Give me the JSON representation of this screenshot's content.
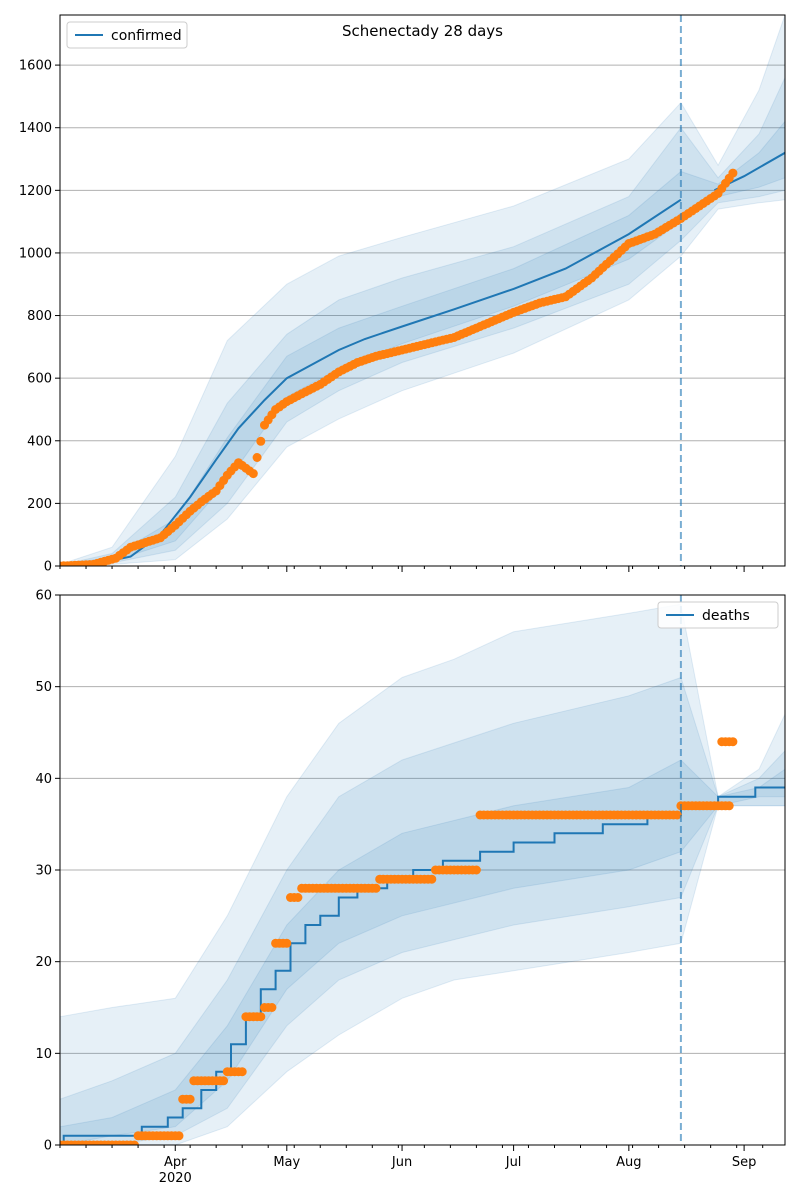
{
  "colors": {
    "line": "#1f77b4",
    "points": "#ff7f0e",
    "band": "#1f77b4",
    "grid": "#b0b0b0"
  },
  "chart_data": [
    {
      "type": "line",
      "title": "Schenectady 28 days",
      "xlabel": "",
      "ylabel": "",
      "xlim": [
        "2020-03-01",
        "2020-09-12"
      ],
      "ylim": [
        0,
        1760
      ],
      "yticks": [
        0,
        200,
        400,
        600,
        800,
        1000,
        1200,
        1400,
        1600
      ],
      "grid": "y",
      "legend": {
        "position": "top-left",
        "entries": [
          "confirmed"
        ]
      },
      "forecast_start": "2020-08-15",
      "series": [
        {
          "name": "confirmed",
          "kind": "model-median",
          "x": [
            "2020-03-01",
            "2020-03-10",
            "2020-03-20",
            "2020-03-28",
            "2020-04-05",
            "2020-04-12",
            "2020-04-18",
            "2020-04-25",
            "2020-05-01",
            "2020-05-08",
            "2020-05-15",
            "2020-05-22",
            "2020-06-01",
            "2020-06-15",
            "2020-07-01",
            "2020-07-15",
            "2020-08-01",
            "2020-08-15",
            "2020-08-24",
            "2020-09-01",
            "2020-09-12"
          ],
          "values": [
            0,
            5,
            30,
            100,
            220,
            340,
            440,
            530,
            600,
            645,
            690,
            725,
            765,
            820,
            885,
            950,
            1060,
            1170,
            1200,
            1245,
            1320
          ]
        },
        {
          "name": "observed",
          "kind": "points",
          "x": [
            "2020-03-01",
            "2020-03-10",
            "2020-03-16",
            "2020-03-20",
            "2020-03-24",
            "2020-03-28",
            "2020-04-01",
            "2020-04-05",
            "2020-04-08",
            "2020-04-12",
            "2020-04-15",
            "2020-04-18",
            "2020-04-22",
            "2020-04-25",
            "2020-04-28",
            "2020-05-01",
            "2020-05-05",
            "2020-05-10",
            "2020-05-15",
            "2020-05-20",
            "2020-05-25",
            "2020-06-01",
            "2020-06-08",
            "2020-06-15",
            "2020-06-22",
            "2020-07-01",
            "2020-07-08",
            "2020-07-15",
            "2020-07-22",
            "2020-08-01",
            "2020-08-08",
            "2020-08-15",
            "2020-08-20",
            "2020-08-25",
            "2020-08-29"
          ],
          "values": [
            0,
            5,
            25,
            60,
            75,
            90,
            130,
            175,
            205,
            240,
            290,
            330,
            295,
            450,
            500,
            525,
            550,
            580,
            620,
            650,
            670,
            690,
            710,
            730,
            765,
            810,
            840,
            860,
            920,
            1030,
            1060,
            1110,
            1150,
            1190,
            1255
          ]
        }
      ],
      "bands": [
        {
          "level": "outer",
          "x": [
            "2020-03-01",
            "2020-03-15",
            "2020-04-01",
            "2020-04-15",
            "2020-05-01",
            "2020-05-15",
            "2020-06-01",
            "2020-07-01",
            "2020-08-01",
            "2020-08-15",
            "2020-08-25",
            "2020-09-05",
            "2020-09-12"
          ],
          "lower": [
            0,
            5,
            20,
            150,
            380,
            470,
            560,
            680,
            850,
            990,
            1140,
            1160,
            1170
          ],
          "upper": [
            5,
            60,
            350,
            720,
            900,
            990,
            1050,
            1150,
            1300,
            1480,
            1280,
            1520,
            1760
          ]
        },
        {
          "level": "middle",
          "x": [
            "2020-03-01",
            "2020-03-15",
            "2020-04-01",
            "2020-04-15",
            "2020-05-01",
            "2020-05-15",
            "2020-06-01",
            "2020-07-01",
            "2020-08-01",
            "2020-08-15",
            "2020-08-25",
            "2020-09-05",
            "2020-09-12"
          ],
          "lower": [
            0,
            10,
            50,
            200,
            460,
            560,
            650,
            760,
            900,
            1040,
            1160,
            1180,
            1200
          ],
          "upper": [
            3,
            40,
            220,
            520,
            740,
            850,
            920,
            1020,
            1180,
            1400,
            1240,
            1380,
            1560
          ]
        },
        {
          "level": "inner",
          "x": [
            "2020-03-01",
            "2020-03-15",
            "2020-04-01",
            "2020-04-15",
            "2020-05-01",
            "2020-05-15",
            "2020-06-01",
            "2020-07-01",
            "2020-08-01",
            "2020-08-15",
            "2020-08-25",
            "2020-09-05",
            "2020-09-12"
          ],
          "lower": [
            0,
            15,
            80,
            270,
            540,
            630,
            710,
            830,
            980,
            1100,
            1180,
            1210,
            1240
          ],
          "upper": [
            2,
            30,
            150,
            410,
            670,
            760,
            830,
            950,
            1120,
            1260,
            1220,
            1320,
            1420
          ]
        }
      ],
      "xticks": [
        {
          "date": "2020-04-01",
          "label": "Apr",
          "sublabel": "2020"
        },
        {
          "date": "2020-05-01",
          "label": "May"
        },
        {
          "date": "2020-06-01",
          "label": "Jun"
        },
        {
          "date": "2020-07-01",
          "label": "Jul"
        },
        {
          "date": "2020-08-01",
          "label": "Aug"
        },
        {
          "date": "2020-09-01",
          "label": "Sep"
        }
      ]
    },
    {
      "type": "line",
      "title": "",
      "xlabel": "",
      "ylabel": "",
      "xlim": [
        "2020-03-01",
        "2020-09-12"
      ],
      "ylim": [
        0,
        60
      ],
      "yticks": [
        0,
        10,
        20,
        30,
        40,
        50,
        60
      ],
      "grid": "y",
      "legend": {
        "position": "top-right",
        "entries": [
          "deaths"
        ]
      },
      "forecast_start": "2020-08-15",
      "series": [
        {
          "name": "deaths",
          "kind": "model-median-step",
          "x": [
            "2020-03-01",
            "2020-03-02",
            "2020-03-16",
            "2020-03-23",
            "2020-03-30",
            "2020-04-03",
            "2020-04-08",
            "2020-04-12",
            "2020-04-16",
            "2020-04-20",
            "2020-04-24",
            "2020-04-28",
            "2020-05-02",
            "2020-05-06",
            "2020-05-10",
            "2020-05-15",
            "2020-05-20",
            "2020-05-28",
            "2020-06-04",
            "2020-06-12",
            "2020-06-22",
            "2020-07-01",
            "2020-07-12",
            "2020-07-25",
            "2020-08-06",
            "2020-08-15",
            "2020-08-25",
            "2020-09-04",
            "2020-09-12"
          ],
          "values": [
            0,
            1,
            1,
            2,
            3,
            4,
            6,
            8,
            11,
            14,
            17,
            19,
            22,
            24,
            25,
            27,
            28,
            29,
            30,
            31,
            32,
            33,
            34,
            35,
            36,
            37,
            38,
            39,
            39
          ]
        },
        {
          "name": "observed",
          "kind": "points-step",
          "x": [
            "2020-03-01",
            "2020-03-22",
            "2020-04-03",
            "2020-04-06",
            "2020-04-15",
            "2020-04-20",
            "2020-04-25",
            "2020-04-28",
            "2020-05-02",
            "2020-05-05",
            "2020-05-18",
            "2020-05-26",
            "2020-06-10",
            "2020-06-22",
            "2020-08-15",
            "2020-08-25",
            "2020-08-29"
          ],
          "values": [
            0,
            1,
            5,
            7,
            8,
            14,
            15,
            22,
            27,
            28,
            28,
            29,
            30,
            36,
            37,
            37,
            44
          ]
        }
      ],
      "bands": [
        {
          "level": "outer",
          "x": [
            "2020-03-01",
            "2020-03-15",
            "2020-04-01",
            "2020-04-15",
            "2020-05-01",
            "2020-05-15",
            "2020-06-01",
            "2020-06-15",
            "2020-07-01",
            "2020-08-01",
            "2020-08-15",
            "2020-08-25",
            "2020-09-05",
            "2020-09-12"
          ],
          "lower": [
            0,
            0,
            0,
            2,
            8,
            12,
            16,
            18,
            19,
            21,
            22,
            37,
            37,
            37
          ],
          "upper": [
            14,
            15,
            16,
            25,
            38,
            46,
            51,
            53,
            56,
            58,
            59,
            38,
            41,
            47
          ]
        },
        {
          "level": "middle",
          "x": [
            "2020-03-01",
            "2020-03-15",
            "2020-04-01",
            "2020-04-15",
            "2020-05-01",
            "2020-05-15",
            "2020-06-01",
            "2020-07-01",
            "2020-08-01",
            "2020-08-15",
            "2020-08-25",
            "2020-09-05",
            "2020-09-12"
          ],
          "lower": [
            0,
            0,
            1,
            4,
            13,
            18,
            21,
            24,
            26,
            27,
            37,
            37,
            37
          ],
          "upper": [
            5,
            7,
            10,
            18,
            30,
            38,
            42,
            46,
            49,
            51,
            38,
            40,
            43
          ]
        },
        {
          "level": "inner",
          "x": [
            "2020-03-01",
            "2020-03-15",
            "2020-04-01",
            "2020-04-15",
            "2020-05-01",
            "2020-05-15",
            "2020-06-01",
            "2020-07-01",
            "2020-08-01",
            "2020-08-15",
            "2020-08-25",
            "2020-09-05",
            "2020-09-12"
          ],
          "lower": [
            0,
            1,
            2,
            7,
            17,
            22,
            25,
            28,
            30,
            32,
            37,
            38,
            38
          ],
          "upper": [
            2,
            3,
            6,
            13,
            24,
            30,
            34,
            37,
            39,
            42,
            38,
            39,
            41
          ]
        }
      ],
      "xticks": [
        {
          "date": "2020-04-01",
          "label": "Apr",
          "sublabel": "2020"
        },
        {
          "date": "2020-05-01",
          "label": "May"
        },
        {
          "date": "2020-06-01",
          "label": "Jun"
        },
        {
          "date": "2020-07-01",
          "label": "Jul"
        },
        {
          "date": "2020-08-01",
          "label": "Aug"
        },
        {
          "date": "2020-09-01",
          "label": "Sep"
        }
      ]
    }
  ]
}
